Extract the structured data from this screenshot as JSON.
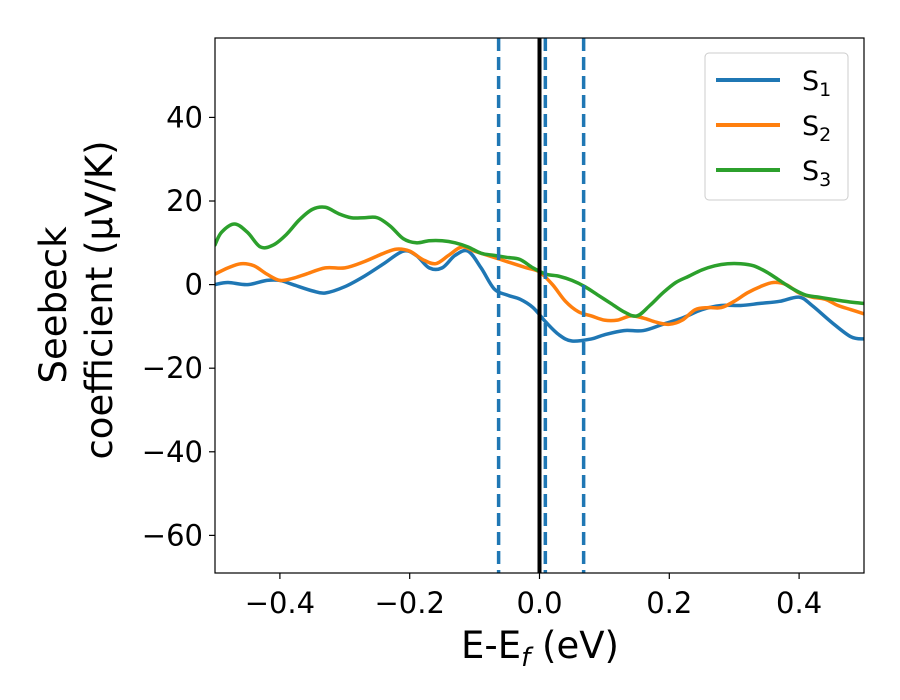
{
  "chart_data": {
    "type": "line",
    "title": "",
    "xlabel": "E-E",
    "xlabel_sub": "f",
    "xlabel_unit": " (eV)",
    "ylabel_line1": "Seebeck",
    "ylabel_line2": "coefficient  (μV/K)",
    "xlim": [
      -0.5,
      0.5
    ],
    "ylim": [
      -69,
      59
    ],
    "xticks": [
      -0.4,
      -0.2,
      0.0,
      0.2,
      0.4
    ],
    "xtick_labels": [
      "−0.4",
      "−0.2",
      "0.0",
      "0.2",
      "0.4"
    ],
    "yticks": [
      40,
      20,
      0,
      -20,
      -40,
      -60
    ],
    "ytick_labels": [
      "40",
      "20",
      "0",
      "−20",
      "−40",
      "−60"
    ],
    "grid": false,
    "legend_position": "top-right",
    "vertical_lines": [
      {
        "x": 0.0,
        "style": "solid",
        "color": "#000000"
      },
      {
        "x": -0.063,
        "style": "dashed",
        "color": "#1f77b4"
      },
      {
        "x": 0.009,
        "style": "dashed",
        "color": "#1f77b4"
      },
      {
        "x": 0.068,
        "style": "dashed",
        "color": "#1f77b4"
      }
    ],
    "series": [
      {
        "name": "S",
        "sub": "1",
        "color": "#1f77b4",
        "points": [
          [
            -0.5,
            0
          ],
          [
            -0.48,
            0.5
          ],
          [
            -0.45,
            0
          ],
          [
            -0.42,
            1
          ],
          [
            -0.4,
            1
          ],
          [
            -0.38,
            0
          ],
          [
            -0.35,
            -1.5
          ],
          [
            -0.33,
            -2
          ],
          [
            -0.3,
            -0.5
          ],
          [
            -0.27,
            2
          ],
          [
            -0.24,
            5
          ],
          [
            -0.21,
            8
          ],
          [
            -0.19,
            7
          ],
          [
            -0.17,
            4
          ],
          [
            -0.15,
            4
          ],
          [
            -0.13,
            7
          ],
          [
            -0.11,
            8
          ],
          [
            -0.09,
            4
          ],
          [
            -0.07,
            -1
          ],
          [
            -0.05,
            -2.5
          ],
          [
            -0.03,
            -3.5
          ],
          [
            -0.01,
            -5.5
          ],
          [
            0.01,
            -9
          ],
          [
            0.03,
            -12
          ],
          [
            0.05,
            -13.5
          ],
          [
            0.08,
            -13
          ],
          [
            0.1,
            -12
          ],
          [
            0.13,
            -11
          ],
          [
            0.16,
            -11
          ],
          [
            0.19,
            -9.5
          ],
          [
            0.22,
            -8
          ],
          [
            0.25,
            -6
          ],
          [
            0.28,
            -5
          ],
          [
            0.31,
            -5
          ],
          [
            0.34,
            -4.5
          ],
          [
            0.37,
            -4
          ],
          [
            0.4,
            -3
          ],
          [
            0.42,
            -5
          ],
          [
            0.45,
            -9
          ],
          [
            0.48,
            -12.5
          ],
          [
            0.5,
            -13
          ]
        ]
      },
      {
        "name": "S",
        "sub": "2",
        "color": "#ff7f0e",
        "points": [
          [
            -0.5,
            2.5
          ],
          [
            -0.48,
            4
          ],
          [
            -0.46,
            5
          ],
          [
            -0.44,
            4.5
          ],
          [
            -0.42,
            2.5
          ],
          [
            -0.4,
            1
          ],
          [
            -0.38,
            1.5
          ],
          [
            -0.36,
            2.5
          ],
          [
            -0.33,
            4
          ],
          [
            -0.3,
            4
          ],
          [
            -0.27,
            5.5
          ],
          [
            -0.24,
            7.5
          ],
          [
            -0.22,
            8.5
          ],
          [
            -0.2,
            8
          ],
          [
            -0.18,
            6
          ],
          [
            -0.16,
            5
          ],
          [
            -0.14,
            7
          ],
          [
            -0.12,
            9
          ],
          [
            -0.1,
            8
          ],
          [
            -0.08,
            7
          ],
          [
            -0.06,
            6
          ],
          [
            -0.04,
            5
          ],
          [
            -0.02,
            4
          ],
          [
            0.0,
            3
          ],
          [
            0.02,
            0
          ],
          [
            0.04,
            -4
          ],
          [
            0.06,
            -6.5
          ],
          [
            0.08,
            -7.5
          ],
          [
            0.1,
            -8.5
          ],
          [
            0.12,
            -8.5
          ],
          [
            0.14,
            -7.5
          ],
          [
            0.16,
            -8
          ],
          [
            0.18,
            -9
          ],
          [
            0.2,
            -9.5
          ],
          [
            0.22,
            -8.5
          ],
          [
            0.24,
            -6
          ],
          [
            0.26,
            -5.5
          ],
          [
            0.28,
            -5.5
          ],
          [
            0.3,
            -4
          ],
          [
            0.32,
            -2
          ],
          [
            0.34,
            -0.5
          ],
          [
            0.36,
            0.5
          ],
          [
            0.38,
            0
          ],
          [
            0.4,
            -2
          ],
          [
            0.42,
            -3
          ],
          [
            0.44,
            -3.5
          ],
          [
            0.46,
            -5
          ],
          [
            0.48,
            -6
          ],
          [
            0.5,
            -7
          ]
        ]
      },
      {
        "name": "S",
        "sub": "3",
        "color": "#2ca02c",
        "points": [
          [
            -0.5,
            9.5
          ],
          [
            -0.49,
            12.5
          ],
          [
            -0.47,
            14.5
          ],
          [
            -0.45,
            12.5
          ],
          [
            -0.43,
            9
          ],
          [
            -0.41,
            9.5
          ],
          [
            -0.39,
            12
          ],
          [
            -0.37,
            15.5
          ],
          [
            -0.35,
            18
          ],
          [
            -0.33,
            18.5
          ],
          [
            -0.31,
            17
          ],
          [
            -0.29,
            16
          ],
          [
            -0.27,
            16
          ],
          [
            -0.25,
            16
          ],
          [
            -0.23,
            14
          ],
          [
            -0.21,
            11
          ],
          [
            -0.19,
            10
          ],
          [
            -0.17,
            10.5
          ],
          [
            -0.15,
            10.5
          ],
          [
            -0.13,
            10
          ],
          [
            -0.11,
            9
          ],
          [
            -0.09,
            7.5
          ],
          [
            -0.07,
            7
          ],
          [
            -0.05,
            6.5
          ],
          [
            -0.03,
            6
          ],
          [
            -0.01,
            4
          ],
          [
            0.01,
            2.5
          ],
          [
            0.03,
            2
          ],
          [
            0.05,
            1
          ],
          [
            0.07,
            -0.5
          ],
          [
            0.09,
            -2.5
          ],
          [
            0.11,
            -4.5
          ],
          [
            0.13,
            -6.5
          ],
          [
            0.15,
            -7.5
          ],
          [
            0.17,
            -5
          ],
          [
            0.19,
            -2
          ],
          [
            0.21,
            0.5
          ],
          [
            0.23,
            2
          ],
          [
            0.25,
            3.5
          ],
          [
            0.27,
            4.5
          ],
          [
            0.29,
            5
          ],
          [
            0.31,
            5
          ],
          [
            0.33,
            4.5
          ],
          [
            0.35,
            3
          ],
          [
            0.37,
            1
          ],
          [
            0.39,
            -1
          ],
          [
            0.41,
            -2.5
          ],
          [
            0.43,
            -3
          ],
          [
            0.45,
            -3.5
          ],
          [
            0.48,
            -4.2
          ],
          [
            0.5,
            -4.5
          ]
        ]
      }
    ]
  }
}
